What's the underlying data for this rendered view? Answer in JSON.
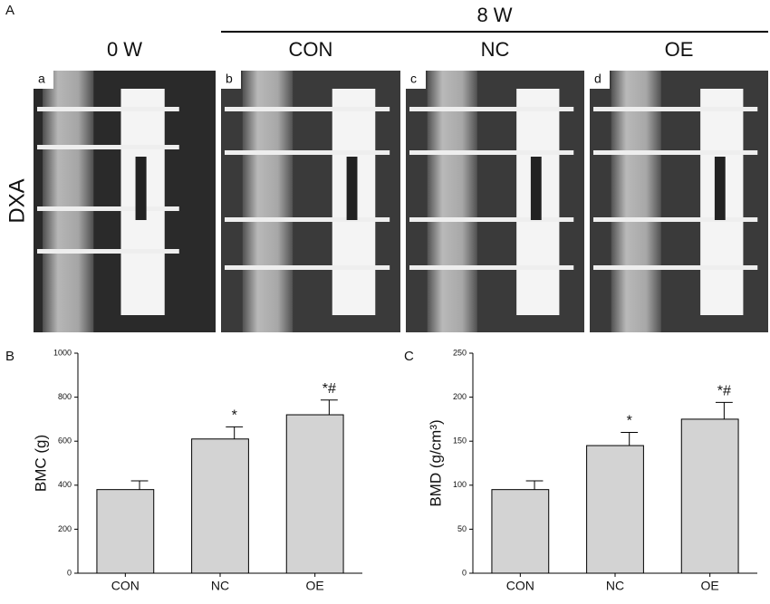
{
  "figure": {
    "panel": "A",
    "group_title": "8 W",
    "row_label": "DXA",
    "images": [
      {
        "tag": "a",
        "title": "0 W"
      },
      {
        "tag": "b",
        "title": "CON"
      },
      {
        "tag": "c",
        "title": "NC"
      },
      {
        "tag": "d",
        "title": "OE"
      }
    ]
  },
  "chart_data": [
    {
      "type": "bar",
      "title": "B",
      "ylabel": "BMC (g)",
      "categories": [
        "CON",
        "NC",
        "OE"
      ],
      "values": [
        380,
        610,
        720
      ],
      "errors": [
        40,
        55,
        67
      ],
      "annotations": [
        null,
        "*",
        "*#"
      ],
      "color": "#d3d3d3",
      "ylim": [
        0,
        1000
      ],
      "yticks": [
        0,
        200,
        400,
        600,
        800,
        1000
      ]
    },
    {
      "type": "bar",
      "title": "C",
      "ylabel": "BMD (g/cm³)",
      "categories": [
        "CON",
        "NC",
        "OE"
      ],
      "values": [
        95,
        145,
        175
      ],
      "errors": [
        10,
        15,
        19
      ],
      "annotations": [
        null,
        "*",
        "*#"
      ],
      "color": "#d3d3d3",
      "ylim": [
        0,
        250
      ],
      "yticks": [
        0,
        50,
        100,
        150,
        200,
        250
      ]
    }
  ]
}
